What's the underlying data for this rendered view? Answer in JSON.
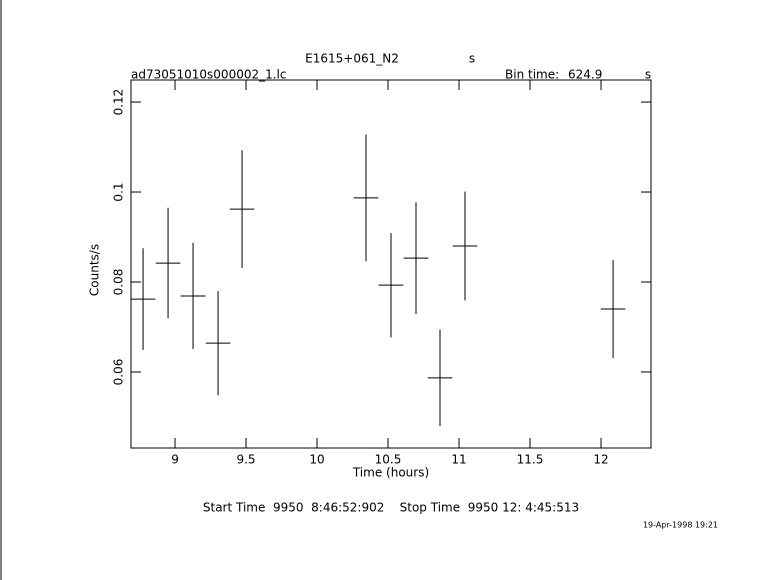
{
  "chart_data": {
    "type": "errorbar",
    "title": "E1615+061_N2",
    "title_unit": "s",
    "file_name": "ad73051010s000002_1.lc",
    "bin_time_label": "Bin time:",
    "bin_time": 624.9,
    "bin_time_unit": "s",
    "xlabel": "Time (hours)",
    "ylabel": "Counts/s",
    "footer": "Start Time  9950  8:46:52:902    Stop Time  9950 12: 4:45:513",
    "date": "19-Apr-1998 19:21",
    "x": [
      8.775,
      8.951,
      9.127,
      9.303,
      9.472,
      10.345,
      10.521,
      10.697,
      10.866,
      11.042,
      12.085
    ],
    "values": [
      0.0762,
      0.0842,
      0.0769,
      0.0664,
      0.0962,
      0.0987,
      0.0793,
      0.0853,
      0.0587,
      0.088,
      0.074
    ],
    "yerr": [
      0.0113,
      0.0123,
      0.0118,
      0.0116,
      0.0131,
      0.0141,
      0.0116,
      0.0124,
      0.0107,
      0.0121,
      0.0109
    ],
    "xerr": 0.0868,
    "color": "#000000",
    "xlim": [
      8.69,
      12.352
    ],
    "ylim": [
      0.0431,
      0.1249
    ],
    "xticks": [
      9,
      9.5,
      10,
      10.5,
      11,
      11.5,
      12
    ],
    "yticks": [
      0.06,
      0.08,
      0.1,
      0.12
    ]
  }
}
